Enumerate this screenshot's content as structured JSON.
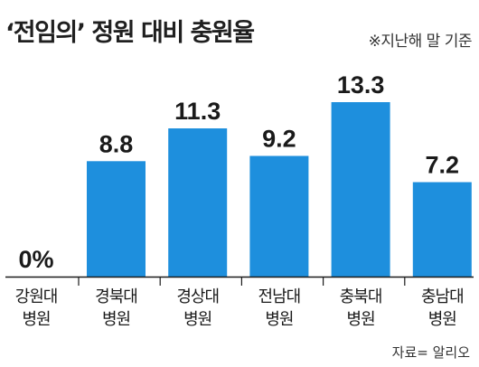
{
  "title": "‘전임의’ 정원 대비 충원율",
  "note": "※지난해 말 기준",
  "source": "자료= 알리오",
  "colors": {
    "bar": "#1e8fdd",
    "axis": "#1a1a1a"
  },
  "chart_data": {
    "type": "bar",
    "title": "‘전임의’ 정원 대비 충원율",
    "categories": [
      [
        "강원대",
        "병원"
      ],
      [
        "경북대",
        "병원"
      ],
      [
        "경상대",
        "병원"
      ],
      [
        "전남대",
        "병원"
      ],
      [
        "충북대",
        "병원"
      ],
      [
        "충남대",
        "병원"
      ]
    ],
    "values": [
      0,
      8.8,
      11.3,
      9.2,
      13.3,
      7.2
    ],
    "value_labels": [
      "0%",
      "8.8",
      "11.3",
      "9.2",
      "13.3",
      "7.2"
    ],
    "xlabel": "",
    "ylabel": "",
    "ylim": [
      0,
      13.3
    ],
    "grid": false,
    "legend": "none"
  }
}
